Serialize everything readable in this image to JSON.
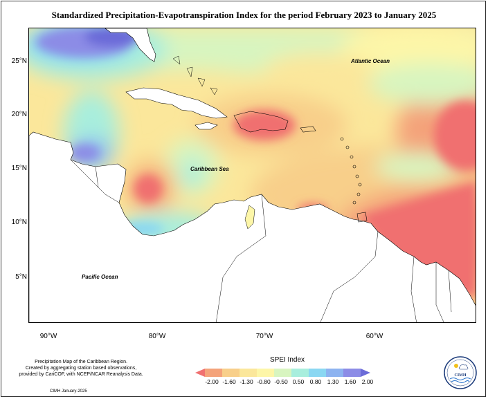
{
  "title": "Standardized Precipitation-Evapotranspiration Index for the period February 2023 to January 2025",
  "map": {
    "lat_labels": [
      "25°N",
      "20°N",
      "15°N",
      "10°N",
      "5°N"
    ],
    "lon_labels": [
      "90°W",
      "80°W",
      "70°W",
      "60°W"
    ],
    "ocean_labels": {
      "atlantic": "Atlantic Ocean",
      "caribbean": "Caribbean Sea",
      "pacific": "Pacific Ocean"
    }
  },
  "credits": {
    "line1": "Precipitation Map of the Caribbean Region.",
    "line2": "Created by aggregating station based observations,",
    "line3": "provided by CariCOF, with NCEP/NCAR Reanalysis Data.",
    "date": "CIMH January-2025"
  },
  "legend": {
    "title": "SPEI Index",
    "ticks": [
      "-2.00",
      "-1.60",
      "-1.30",
      "-0.80",
      "-0.50",
      "0.50",
      "0.80",
      "1.30",
      "1.60",
      "2.00"
    ],
    "colors": [
      "#f07070",
      "#f4a37a",
      "#f8cf8a",
      "#fbe79b",
      "#fdf6a8",
      "#d8f5c0",
      "#a8eedd",
      "#8ad7f2",
      "#8db3f0",
      "#8c8ce6",
      "#6b6bd8"
    ]
  },
  "logo": {
    "text": "CIMH"
  }
}
